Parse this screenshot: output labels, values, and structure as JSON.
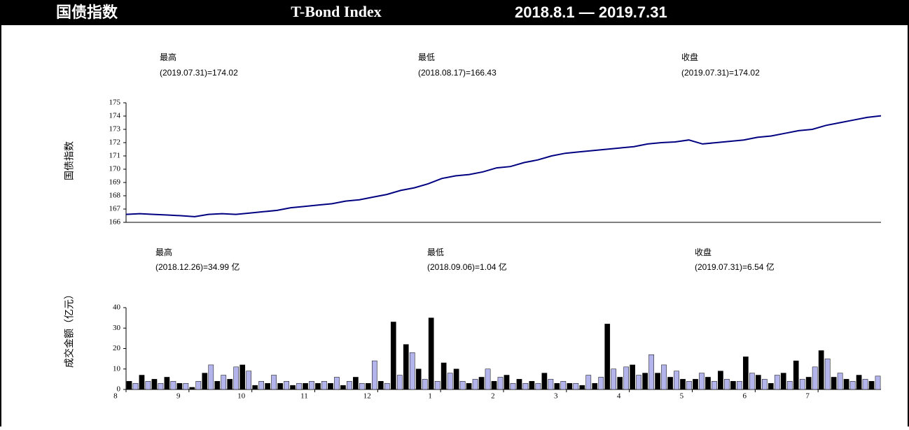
{
  "header": {
    "title_cn": "国债指数",
    "title_en": "T-Bond Index",
    "period": "2018.8.1 — 2019.7.31"
  },
  "chart_data": [
    {
      "type": "line",
      "ylabel": "国债指数",
      "color": "#000080",
      "annotations": [
        {
          "label": "最高",
          "text": "(2019.07.31)=174.02"
        },
        {
          "label": "最低",
          "text": "(2018.08.17)=166.43"
        },
        {
          "label": "收盘",
          "text": "(2019.07.31)=174.02"
        }
      ],
      "values": [
        166.6,
        166.65,
        166.6,
        166.55,
        166.5,
        166.43,
        166.6,
        166.65,
        166.6,
        166.7,
        166.8,
        166.9,
        167.1,
        167.2,
        167.3,
        167.4,
        167.6,
        167.7,
        167.9,
        168.1,
        168.4,
        168.6,
        168.9,
        169.3,
        169.5,
        169.6,
        169.8,
        170.1,
        170.2,
        170.5,
        170.7,
        171.0,
        171.2,
        171.3,
        171.4,
        171.5,
        171.6,
        171.7,
        171.9,
        172.0,
        172.05,
        172.2,
        171.9,
        172.0,
        172.1,
        172.2,
        172.4,
        172.5,
        172.7,
        172.9,
        173.0,
        173.3,
        173.5,
        173.7,
        173.9,
        174.02
      ],
      "ylim": [
        166,
        175
      ],
      "yticks": [
        166,
        167,
        168,
        169,
        170,
        171,
        172,
        173,
        174,
        175
      ]
    },
    {
      "type": "bar",
      "ylabel": "成交金额（亿元）",
      "colors": [
        "#000000",
        "#b4b4ec"
      ],
      "annotations": [
        {
          "label": "最高",
          "text": "(2018.12.26)=34.99 亿"
        },
        {
          "label": "最低",
          "text": "(2018.09.06)=1.04 亿"
        },
        {
          "label": "收盘",
          "text": "(2019.07.31)=6.54 亿"
        }
      ],
      "month_labels": [
        "8",
        "9",
        "10",
        "11",
        "12",
        "1",
        "2",
        "3",
        "4",
        "5",
        "6",
        "7"
      ],
      "values": [
        4,
        3,
        7,
        4,
        5,
        3,
        6,
        4,
        3,
        3,
        1.04,
        4,
        8,
        12,
        4,
        7,
        5,
        11,
        12,
        9,
        2,
        4,
        3,
        7,
        3,
        4,
        2,
        3,
        3,
        4,
        3,
        4,
        3,
        6,
        2,
        4,
        6,
        3,
        3,
        14,
        4,
        3,
        33,
        7,
        22,
        18,
        10,
        5,
        34.99,
        4,
        13,
        8,
        10,
        4,
        3,
        5,
        6,
        10,
        4,
        6,
        7,
        3,
        5,
        3,
        4,
        3,
        8,
        5,
        3,
        4,
        3,
        3,
        2,
        7,
        3,
        6,
        32,
        10,
        6,
        11,
        12,
        7,
        8,
        17,
        8,
        12,
        6,
        9,
        5,
        4,
        5,
        8,
        6,
        4,
        9,
        5,
        4,
        4,
        16,
        8,
        7,
        5,
        3,
        7,
        8,
        4,
        14,
        5,
        6,
        11,
        19,
        15,
        6,
        8,
        5,
        4,
        7,
        5,
        4,
        6.54
      ],
      "ylim": [
        0,
        40
      ],
      "yticks": [
        0,
        10,
        20,
        30,
        40
      ]
    }
  ]
}
